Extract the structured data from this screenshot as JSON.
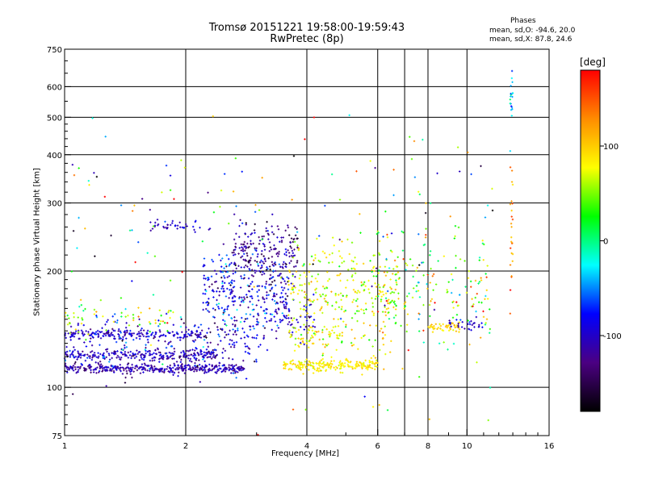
{
  "header": {
    "title_line1": "Tromsø 20151221 19:58:00-19:59:43",
    "title_line2": "RwPretec (8p)",
    "stats_heading": "Phases",
    "stats_o": "mean, sd,O: -94.6, 20.0",
    "stats_x": "mean, sd,X:  87.8, 24.6"
  },
  "colorbar": {
    "unit": "[deg]",
    "ticks": [
      "100",
      "0",
      "-100"
    ],
    "tick_values": [
      100,
      0,
      -100
    ],
    "range": [
      -180,
      180
    ],
    "colors": [
      "#000000",
      "#4b0082",
      "#0000ff",
      "#00ffff",
      "#00ff00",
      "#ffff00",
      "#ff8c00",
      "#ff0000"
    ]
  },
  "chart_data": {
    "type": "scatter",
    "title": "Tromsø 20151221 19:58:00-19:59:43",
    "subtitle": "RwPretec (8p)",
    "xlabel": "Frequency [MHz]",
    "ylabel": "Stationary phase Virtual Height [km]",
    "xscale": "log",
    "yscale": "log",
    "xlim": [
      1,
      16
    ],
    "ylim": [
      75,
      750
    ],
    "xticks": [
      1,
      2,
      4,
      6,
      8,
      10,
      16
    ],
    "xtick_labels": [
      "1",
      "2",
      "4",
      "6",
      "8",
      "10",
      "16"
    ],
    "yticks": [
      75,
      100,
      200,
      300,
      400,
      500,
      600,
      750
    ],
    "ytick_labels": [
      "75",
      "100",
      "200",
      "300",
      "400",
      "500",
      "600",
      "750"
    ],
    "xgrid": [
      2,
      4,
      6,
      7,
      8,
      10
    ],
    "ygrid": [
      100,
      200,
      300,
      400,
      500,
      600
    ],
    "color_scale": "phase [deg]",
    "clusters": [
      {
        "f_range": [
          1.0,
          2.8
        ],
        "h_center": 112,
        "h_spread": 1.5,
        "phase": -110,
        "phase_sd": 15,
        "count": 380
      },
      {
        "f_range": [
          1.0,
          2.4
        ],
        "h_center": 121,
        "h_spread": 2,
        "phase": -105,
        "phase_sd": 18,
        "count": 260
      },
      {
        "f_range": [
          1.0,
          2.2
        ],
        "h_center": 137,
        "h_spread": 2,
        "phase": -100,
        "phase_sd": 18,
        "count": 180
      },
      {
        "f_range": [
          1.0,
          3.0
        ],
        "h_center": 130,
        "h_spread": 12,
        "phase": -95,
        "phase_sd": 30,
        "count": 200
      },
      {
        "f_range": [
          1.0,
          1.9
        ],
        "h_center": 150,
        "h_spread": 8,
        "phase": 60,
        "phase_sd": 40,
        "count": 60
      },
      {
        "f_range": [
          2.2,
          3.6
        ],
        "h_center": 175,
        "h_spread": 22,
        "phase": -90,
        "phase_sd": 30,
        "count": 300
      },
      {
        "f_range": [
          2.6,
          3.8
        ],
        "h_center": 225,
        "h_spread": 22,
        "phase": -120,
        "phase_sd": 25,
        "count": 220
      },
      {
        "f_range": [
          1.6,
          2.3
        ],
        "h_center": 262,
        "h_spread": 4,
        "phase": -100,
        "phase_sd": 15,
        "count": 40
      },
      {
        "f_range": [
          3.0,
          4.2
        ],
        "h_center": 150,
        "h_spread": 10,
        "phase": -100,
        "phase_sd": 20,
        "count": 80
      },
      {
        "f_range": [
          3.5,
          6.0
        ],
        "h_center": 114,
        "h_spread": 2,
        "phase": 85,
        "phase_sd": 12,
        "count": 200
      },
      {
        "f_range": [
          3.6,
          6.8
        ],
        "h_center": 175,
        "h_spread": 28,
        "phase": 75,
        "phase_sd": 25,
        "count": 300
      },
      {
        "f_range": [
          3.6,
          5.0
        ],
        "h_center": 135,
        "h_spread": 5,
        "phase": 80,
        "phase_sd": 20,
        "count": 60
      },
      {
        "f_range": [
          5.8,
          11.5
        ],
        "h_center": 180,
        "h_spread": 35,
        "phase": 60,
        "phase_sd": 50,
        "count": 200
      },
      {
        "f_range": [
          8.0,
          9.6
        ],
        "h_center": 143,
        "h_spread": 2,
        "phase": 95,
        "phase_sd": 15,
        "count": 40
      },
      {
        "f_range": [
          9.0,
          11.0
        ],
        "h_center": 145,
        "h_spread": 3,
        "phase": -100,
        "phase_sd": 15,
        "count": 30
      },
      {
        "f_range": [
          12.8,
          13.0
        ],
        "h_center": 250,
        "h_spread": 60,
        "phase": 120,
        "phase_sd": 30,
        "count": 25
      },
      {
        "f_range": [
          12.8,
          13.0
        ],
        "h_center": 560,
        "h_spread": 50,
        "phase": -40,
        "phase_sd": 20,
        "count": 20
      },
      {
        "f_range": [
          1.0,
          12.0
        ],
        "h_center": 250,
        "h_spread": 100,
        "phase": 0,
        "phase_sd": 100,
        "count": 140
      }
    ]
  }
}
